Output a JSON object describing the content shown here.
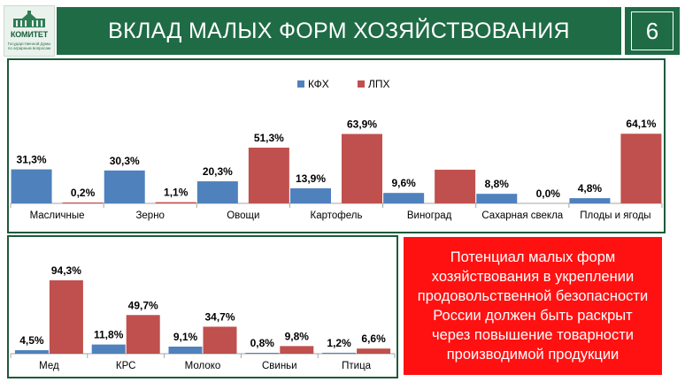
{
  "logo": {
    "word": "КОМИТЕТ",
    "sub": "Государственной Думы по аграрным вопросам"
  },
  "header": {
    "title": "ВКЛАД МАЛЫХ ФОРМ ХОЗЯЙСТВОВАНИЯ",
    "page_number": "6"
  },
  "colors": {
    "kfh": "#4f81bd",
    "lph": "#c0504d",
    "brand": "#1f6b45"
  },
  "callout": {
    "text": "Потенциал малых форм хозяйствования в укреплении продовольственной безопасности России должен быть раскрыт через повышение товарности производимой продукции"
  },
  "chart_data": [
    {
      "type": "bar",
      "legend": [
        "КФХ",
        "ЛПХ"
      ],
      "categories": [
        "Масличные",
        "Зерно",
        "Овощи",
        "Картофель",
        "Виноград",
        "Сахарная свекла",
        "Плоды и ягоды"
      ],
      "series": [
        {
          "name": "КФХ",
          "values": [
            31.3,
            30.3,
            20.3,
            13.9,
            9.6,
            8.8,
            4.8
          ],
          "labels": [
            "31,3%",
            "30,3%",
            "20,3%",
            "13,9%",
            "9,6%",
            "8,8%",
            "4,8%"
          ]
        },
        {
          "name": "ЛПХ",
          "values": [
            0.2,
            1.1,
            51.3,
            63.9,
            31.0,
            0.0,
            64.1
          ],
          "labels": [
            "0,2%",
            "1,1%",
            "51,3%",
            "63,9%",
            "",
            "0,0%",
            "64,1%"
          ]
        }
      ],
      "ylim": [
        0,
        70
      ]
    },
    {
      "type": "bar",
      "categories": [
        "Мед",
        "КРС",
        "Молоко",
        "Свиньи",
        "Птица"
      ],
      "series": [
        {
          "name": "КФХ",
          "values": [
            4.5,
            11.8,
            9.1,
            0.8,
            1.2
          ],
          "labels": [
            "4,5%",
            "11,8%",
            "9,1%",
            "0,8%",
            "1,2%"
          ]
        },
        {
          "name": "ЛПХ",
          "values": [
            94.3,
            49.7,
            34.7,
            9.8,
            6.6
          ],
          "labels": [
            "94,3%",
            "49,7%",
            "34,7%",
            "9,8%",
            "6,6%"
          ]
        }
      ],
      "ylim": [
        0,
        100
      ]
    }
  ]
}
